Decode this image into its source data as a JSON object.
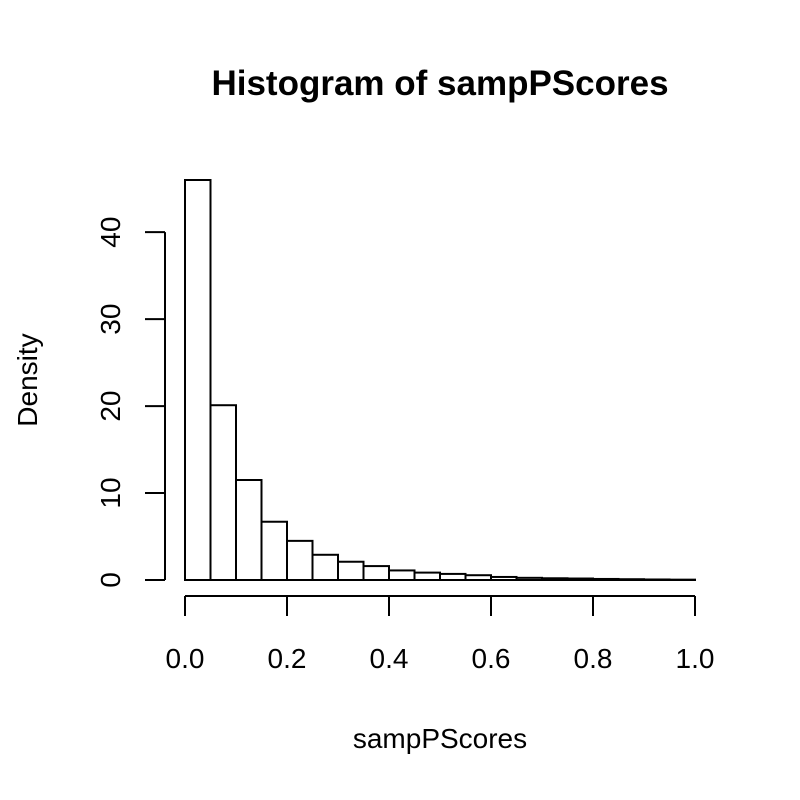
{
  "chart_data": {
    "type": "bar",
    "title": "Histogram of sampPScores",
    "xlabel": "sampPScores",
    "ylabel": "Density",
    "bins": [
      [
        0.0,
        0.05
      ],
      [
        0.05,
        0.1
      ],
      [
        0.1,
        0.15
      ],
      [
        0.15,
        0.2
      ],
      [
        0.2,
        0.25
      ],
      [
        0.25,
        0.3
      ],
      [
        0.3,
        0.35
      ],
      [
        0.35,
        0.4
      ],
      [
        0.4,
        0.45
      ],
      [
        0.45,
        0.5
      ],
      [
        0.5,
        0.55
      ],
      [
        0.55,
        0.6
      ],
      [
        0.6,
        0.65
      ],
      [
        0.65,
        0.7
      ],
      [
        0.7,
        0.75
      ],
      [
        0.75,
        0.8
      ],
      [
        0.8,
        0.85
      ],
      [
        0.85,
        0.9
      ],
      [
        0.9,
        0.95
      ],
      [
        0.95,
        1.0
      ]
    ],
    "values": [
      46.0,
      20.1,
      11.5,
      6.7,
      4.5,
      2.9,
      2.1,
      1.6,
      1.1,
      0.85,
      0.7,
      0.55,
      0.35,
      0.25,
      0.2,
      0.17,
      0.12,
      0.09,
      0.06,
      0.04
    ],
    "xlim": [
      0,
      1
    ],
    "ylim": [
      0,
      46
    ],
    "x_ticks": [
      0.0,
      0.2,
      0.4,
      0.6,
      0.8,
      1.0
    ],
    "x_tick_labels": [
      "0.0",
      "0.2",
      "0.4",
      "0.6",
      "0.8",
      "1.0"
    ],
    "y_ticks": [
      0,
      10,
      20,
      30,
      40
    ],
    "y_tick_labels": [
      "0",
      "10",
      "20",
      "30",
      "40"
    ],
    "grid": false,
    "bar_fill": "#ffffff",
    "bar_stroke": "#000000"
  }
}
